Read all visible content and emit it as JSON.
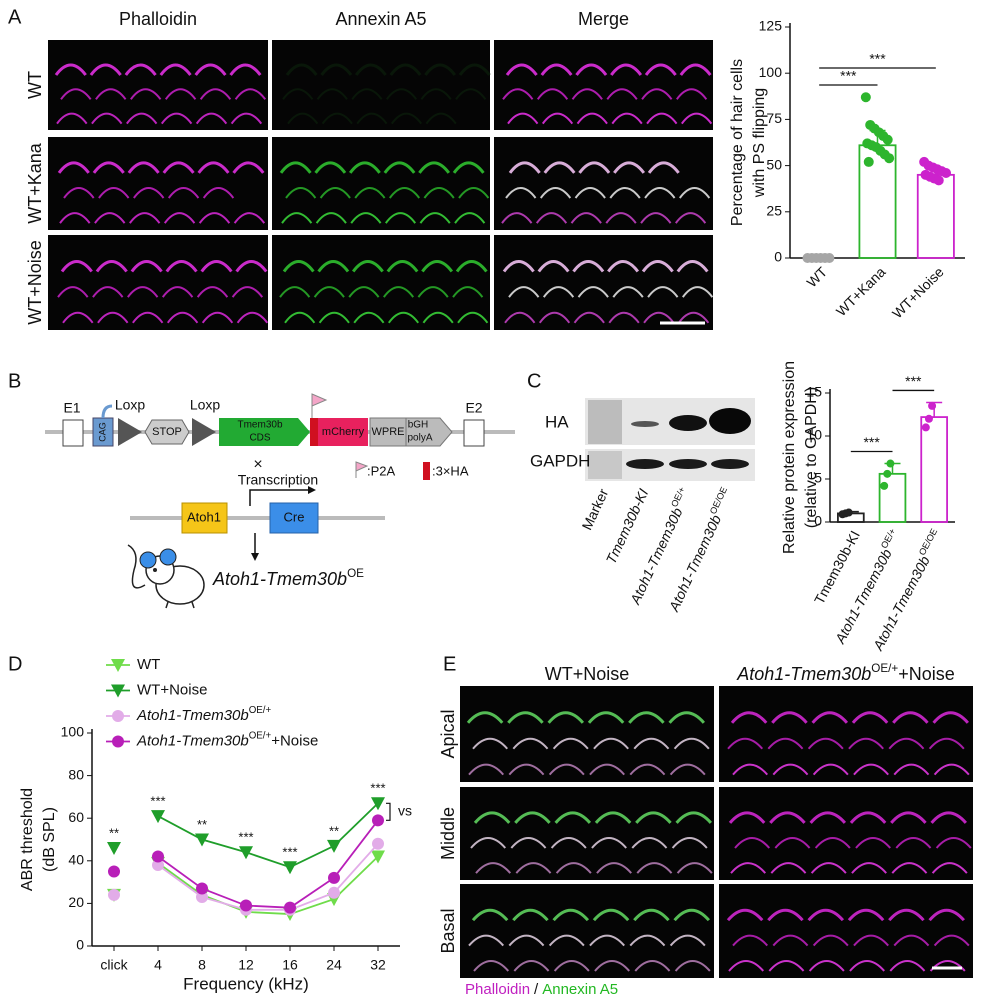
{
  "panel_labels": [
    "A",
    "B",
    "C",
    "D",
    "E"
  ],
  "panel_a": {
    "channels": [
      "Phalloidin",
      "Annexin A5",
      "Merge"
    ],
    "rows": [
      "WT",
      "WT+Kana",
      "WT+Noise"
    ]
  },
  "panel_b": {
    "e1": "E1",
    "cag": "CAG",
    "loxp": [
      "Loxp",
      "Loxp"
    ],
    "stop": "STOP",
    "cds": [
      "Tmem30b",
      "CDS"
    ],
    "mcherry": "mCherry",
    "wpre": "WPRE",
    "bgh": [
      "bGH",
      "polyA"
    ],
    "e2": "E2",
    "cross": "×",
    "transcription": "Transcription",
    "p2a": ":P2A",
    "ha": ":3×HA",
    "atoh1": "Atoh1",
    "cre": "Cre",
    "mouse": {
      "name": "Atoh1-Tmem30b",
      "sup": "OE"
    }
  },
  "panel_c": {
    "bands": [
      "HA",
      "GAPDH"
    ],
    "lanes": [
      {
        "name": "Marker"
      },
      {
        "name": "Tmem30b-KI"
      },
      {
        "name": "Atoh1-Tmem30b",
        "sup": "OE/+"
      },
      {
        "name": "Atoh1-Tmem30b",
        "sup": "OE/OE"
      }
    ]
  },
  "panel_e": {
    "columns": [
      {
        "name": "WT+Noise"
      },
      {
        "name": "Atoh1-Tmem30b",
        "sup": "OE/+",
        "suffix": "+Noise"
      }
    ],
    "rows": [
      "Apical",
      "Middle",
      "Basal"
    ],
    "stain": [
      "Phalloidin",
      "/",
      "Annexin A5"
    ]
  },
  "chart_data": [
    {
      "type": "bar",
      "y_label": [
        "Percentage of hair cells",
        "with PS flipping"
      ],
      "categories": [
        {
          "name": "WT"
        },
        {
          "name": "WT+Kana"
        },
        {
          "name": "WT+Noise"
        }
      ],
      "values": [
        0,
        61,
        45
      ],
      "errors": [
        0.5,
        8,
        3.5
      ],
      "colors": [
        "#a6a6a6",
        "#2db52d",
        "#cc22cc"
      ],
      "points": [
        [
          0,
          0,
          0,
          0,
          0,
          0
        ],
        [
          87,
          72,
          70,
          68,
          66,
          64,
          62,
          61,
          60,
          58,
          56,
          54,
          52
        ],
        [
          52,
          50,
          49,
          48,
          47,
          46,
          45,
          44,
          43,
          42
        ]
      ],
      "ylim": [
        0,
        125
      ],
      "yticks": [
        0,
        25,
        50,
        75,
        100,
        125
      ],
      "significance": [
        {
          "from": 0,
          "to": 1,
          "label": "***"
        },
        {
          "from": 0,
          "to": 2,
          "label": "***"
        }
      ]
    },
    {
      "type": "bar",
      "y_label": [
        "Relative protein expression",
        "(relative to GAPDH)"
      ],
      "categories": [
        {
          "name": "Tmem30b-KI"
        },
        {
          "name": "Atoh1-Tmem30b",
          "sup": "OE/+"
        },
        {
          "name": "Atoh1-Tmem30b",
          "sup": "OE/OE"
        }
      ],
      "values": [
        1,
        5.6,
        12.2
      ],
      "errors": [
        0.2,
        1.2,
        1.7
      ],
      "colors": [
        "#222222",
        "#2db52d",
        "#cc22cc"
      ],
      "points": [
        [
          0.9,
          1,
          1.1
        ],
        [
          4.2,
          5.6,
          6.8
        ],
        [
          11,
          12,
          13.5
        ]
      ],
      "ylim": [
        0,
        15
      ],
      "yticks": [
        0,
        5,
        10,
        15
      ],
      "significance": [
        {
          "from": 0,
          "to": 1,
          "label": "***"
        },
        {
          "from": 1,
          "to": 2,
          "label": "***"
        }
      ]
    },
    {
      "type": "line",
      "x_label": "Frequency (kHz)",
      "y_label": [
        "ABR threshold",
        "(dB SPL)"
      ],
      "categories": [
        "click",
        "4",
        "8",
        "12",
        "16",
        "24",
        "32"
      ],
      "ylim": [
        0,
        100
      ],
      "yticks": [
        0,
        20,
        40,
        60,
        80,
        100
      ],
      "series": [
        {
          "name": "WT",
          "color": "#6fdc4a",
          "marker": "triangle",
          "values": [
            24,
            39,
            24,
            16,
            15,
            22,
            42
          ]
        },
        {
          "name": "WT+Noise",
          "color": "#1f9e2a",
          "marker": "triangle",
          "values": [
            46,
            61,
            50,
            44,
            37,
            47,
            67
          ]
        },
        {
          "name": "Atoh1-Tmem30b",
          "sup": "OE/+",
          "color": "#e2ace8",
          "marker": "circle",
          "values": [
            24,
            38,
            23,
            17,
            17,
            25,
            48
          ]
        },
        {
          "name": "Atoh1-Tmem30b",
          "sup": "OE/+",
          "suffix": "+Noise",
          "color": "#b81fb8",
          "marker": "circle",
          "values": [
            35,
            42,
            27,
            19,
            18,
            32,
            59
          ]
        }
      ],
      "significance": [
        "**",
        "***",
        "**",
        "***",
        "***",
        "**",
        "***"
      ],
      "comparison_label": "vs"
    }
  ]
}
